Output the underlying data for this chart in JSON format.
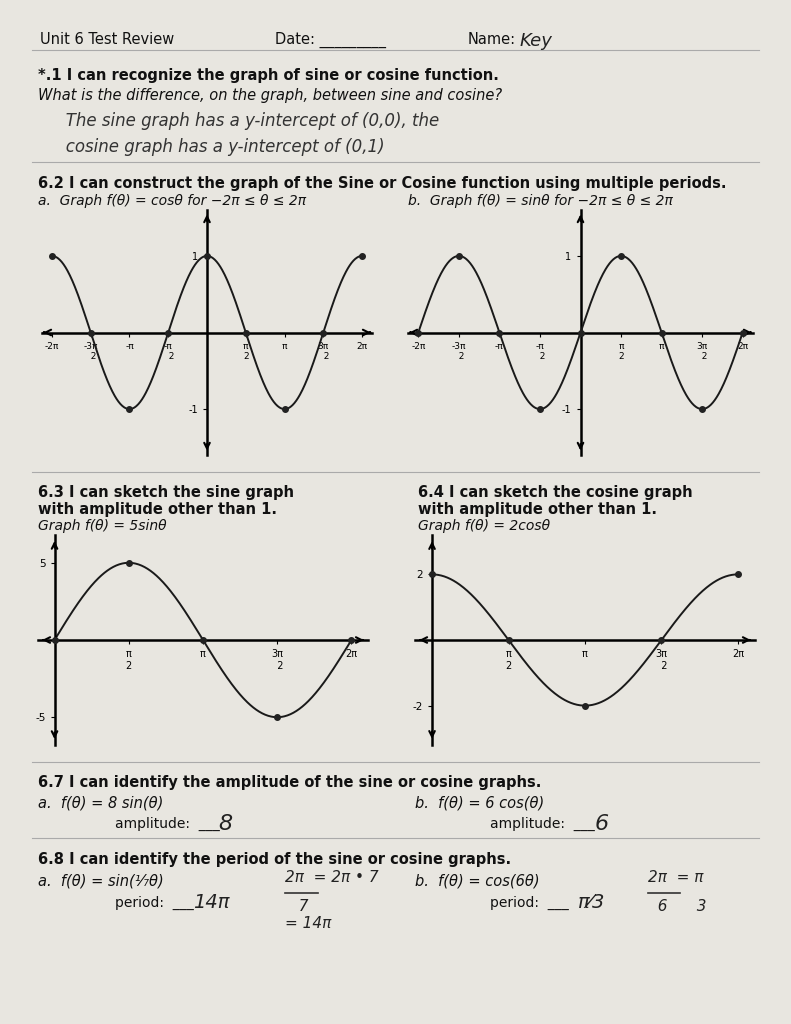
{
  "bg_color": "#e8e6e0",
  "graph_line_color": "#1a1a1a",
  "header_text": "Unit 6 Test Review",
  "date_text": "Date: _________",
  "name_text": "Name:",
  "name_written": "Key",
  "sec61_header": "*.1 I can recognize the graph of sine or cosine function.",
  "sec61_q": "What is the difference, on the graph, between sine and cosine?",
  "sec61_a1": "   The sine graph has a y-intercept of (0,0), the",
  "sec61_a2": "   cosine graph has a y-intercept of (0,1)",
  "sec62_header": "6.2 I can construct the graph of the Sine or Cosine function using multiple periods.",
  "sec62a": "a.  Graph f(θ) = cosθ for −2π ≤ θ ≤ 2π",
  "sec62b": "b.  Graph f(θ) = sinθ for −2π ≤ θ ≤ 2π",
  "sec63_h1": "6.3 I can sketch the sine graph",
  "sec63_h2": "with amplitude other than 1.",
  "sec63_label": "Graph f(θ) = 5sinθ",
  "sec64_h1": "6.4 I can sketch the cosine graph",
  "sec64_h2": "with amplitude other than 1.",
  "sec64_label": "Graph f(θ) = 2cosθ",
  "sec67_header": "6.7 I can identify the amplitude of the sine or cosine graphs.",
  "sec67a_eq": "a.  f(θ) = 8 sin(θ)",
  "sec67a_lbl": "amplitude:  ___",
  "sec67a_ans": "8",
  "sec67b_eq": "b.  f(θ) = 6 cos(θ)",
  "sec67b_lbl": "amplitude:  ___",
  "sec67b_ans": "6",
  "sec68_header": "6.8 I can identify the period of the sine or cosine graphs.",
  "sec68a_eq": "a.  f(θ) = sin(¹⁄₇θ)",
  "sec68a_period_lbl": "period:  ___",
  "sec68a_period_ans": "14π",
  "sec68a_w1": "2π  = 2π • 7",
  "sec68a_w2": "  7",
  "sec68a_w3": "= 14π",
  "sec68b_eq": "b.  f(θ) = cos(6θ)",
  "sec68b_period_lbl": "period:  ___",
  "sec68b_period_ans": "π⁄3",
  "sec68b_w1": "2π  = π",
  "sec68b_w2": "  6      3"
}
